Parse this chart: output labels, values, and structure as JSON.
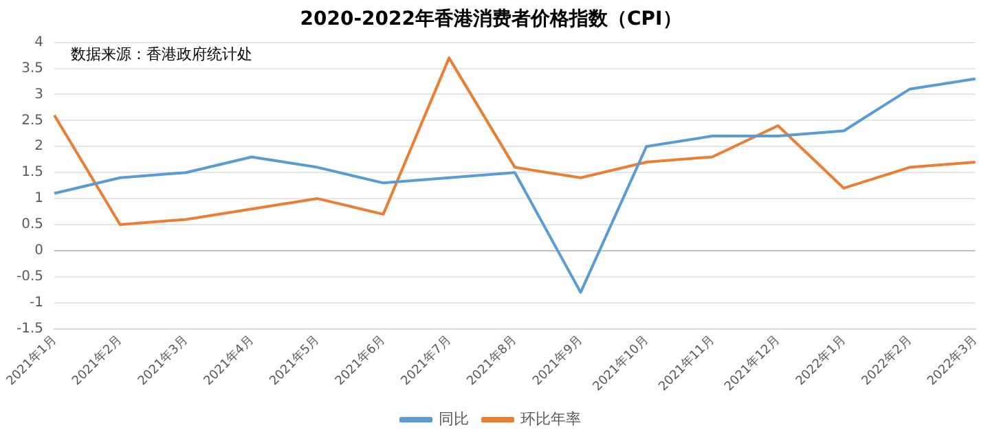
{
  "chart_data": {
    "type": "line",
    "title": "2020-2022年香港消费者价格指数（CPI）",
    "categories": [
      "2021年1月",
      "2021年2月",
      "2021年3月",
      "2021年4月",
      "2021年5月",
      "2021年6月",
      "2021年7月",
      "2021年8月",
      "2021年9月",
      "2021年10月",
      "2021年11月",
      "2021年12月",
      "2022年1月",
      "2022年2月",
      "2022年3月"
    ],
    "series": [
      {
        "name": "同比",
        "color": "#5b9bd5",
        "values": [
          1.1,
          1.4,
          1.5,
          1.8,
          1.6,
          1.3,
          1.4,
          1.5,
          -0.8,
          2.0,
          2.2,
          2.2,
          2.3,
          3.1,
          3.3
        ]
      },
      {
        "name": "环比年率",
        "color": "#ed7d31",
        "values": [
          2.6,
          0.5,
          0.6,
          0.8,
          1.0,
          0.7,
          3.7,
          1.6,
          1.4,
          1.7,
          1.8,
          2.4,
          1.2,
          1.6,
          1.7
        ]
      }
    ],
    "ylim": [
      -1.5,
      4
    ],
    "yticks": [
      -1.5,
      -1,
      -0.5,
      0,
      0.5,
      1,
      1.5,
      2,
      2.5,
      3,
      3.5,
      4
    ],
    "grid": "y",
    "legend": "bottom",
    "marker": "none",
    "line_style": "solid",
    "annotations": [
      "数据来源：香港政府统计处"
    ]
  }
}
